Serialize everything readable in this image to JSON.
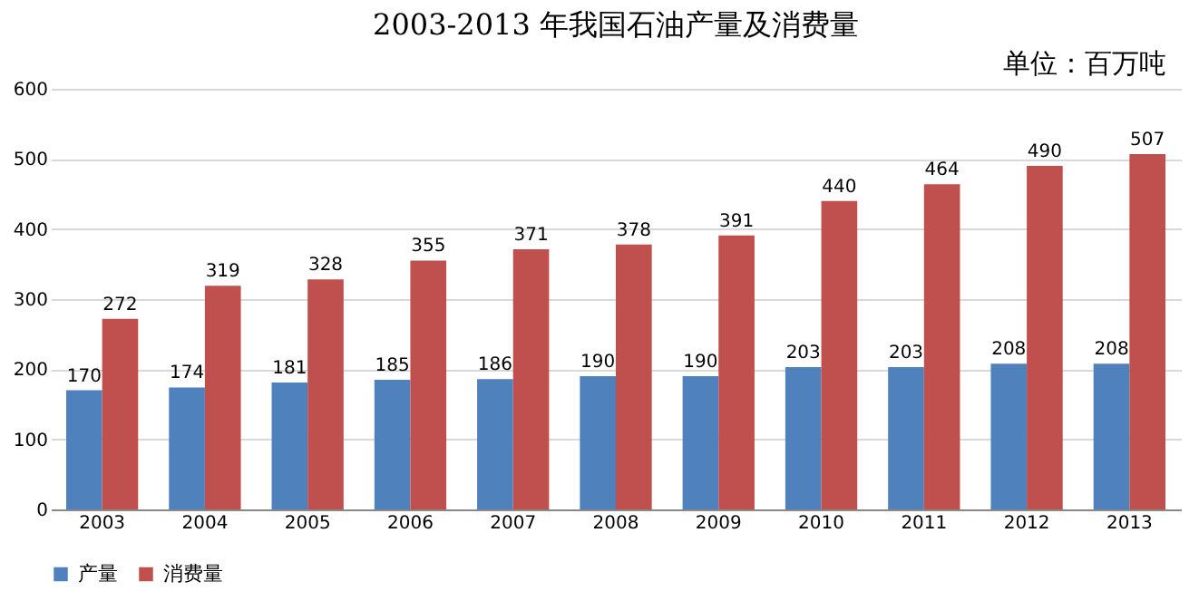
{
  "chart_data": {
    "type": "bar",
    "title": "2003-2013 年我国石油产量及消费量",
    "annotations": [
      "单位：百万吨"
    ],
    "categories": [
      "2003",
      "2004",
      "2005",
      "2006",
      "2007",
      "2008",
      "2009",
      "2010",
      "2011",
      "2012",
      "2013"
    ],
    "series": [
      {
        "name": "产量",
        "color": "#4f81bd",
        "values": [
          170,
          174,
          181,
          185,
          186,
          190,
          190,
          203,
          203,
          208,
          208
        ]
      },
      {
        "name": "消费量",
        "color": "#c0504d",
        "values": [
          272,
          319,
          328,
          355,
          371,
          378,
          391,
          440,
          464,
          490,
          507
        ]
      }
    ],
    "ylim": [
      0,
      600
    ],
    "yticks": [
      0,
      100,
      200,
      300,
      400,
      500,
      600
    ],
    "grid": "y",
    "legend": "bottom",
    "data_labels": true
  }
}
